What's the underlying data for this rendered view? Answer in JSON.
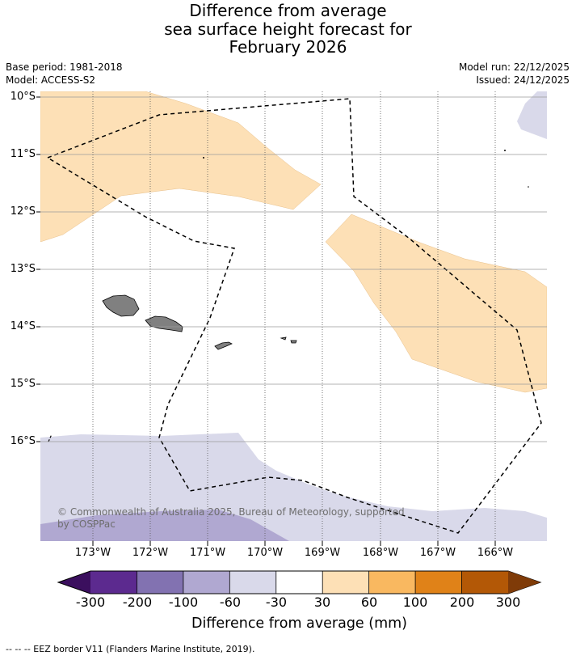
{
  "title": {
    "line1": "Difference from average",
    "line2": "sea surface height forecast for",
    "line3": "February 2026"
  },
  "meta": {
    "base_period": "Base period: 1981-2018",
    "model": "Model: ACCESS-S2",
    "model_run": "Model run: 22/12/2025",
    "issued": "Issued: 24/12/2025"
  },
  "axes": {
    "lat_labels": [
      "10°S",
      "11°S",
      "12°S",
      "13°S",
      "14°S",
      "15°S",
      "16°S"
    ],
    "lon_labels": [
      "173°W",
      "172°W",
      "171°W",
      "170°W",
      "169°W",
      "168°W",
      "167°W",
      "166°W"
    ]
  },
  "copyright": "© Commonwealth of Australia 2025, Bureau of Meteorology, supported by COSPPac",
  "colorbar": {
    "title": "Difference from average (mm)",
    "tick_labels": [
      "-300",
      "-200",
      "-100",
      "-60",
      "-30",
      "30",
      "60",
      "100",
      "200",
      "300"
    ],
    "colors": [
      "#3b0f5e",
      "#5c2a8f",
      "#8272b1",
      "#b0a8d1",
      "#d9d9ea",
      "#ffffff",
      "#fde0b6",
      "#f9b860",
      "#e08218",
      "#b35806",
      "#7f3b08"
    ]
  },
  "footnote": "--  --  -- EEZ border V11 (Flanders Marine Institute, 2019)."
}
